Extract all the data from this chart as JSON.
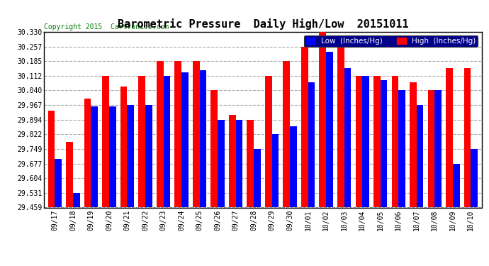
{
  "title": "Barometric Pressure  Daily High/Low  20151011",
  "copyright": "Copyright 2015  Cartronics.com",
  "legend_low": "Low  (Inches/Hg)",
  "legend_high": "High  (Inches/Hg)",
  "dates": [
    "09/17",
    "09/18",
    "09/19",
    "09/20",
    "09/21",
    "09/22",
    "09/23",
    "09/24",
    "09/25",
    "09/26",
    "09/27",
    "09/28",
    "09/29",
    "09/30",
    "10/01",
    "10/02",
    "10/03",
    "10/04",
    "10/05",
    "10/06",
    "10/07",
    "10/08",
    "10/09",
    "10/10"
  ],
  "low_values": [
    29.7,
    29.531,
    29.96,
    29.96,
    29.967,
    29.967,
    30.112,
    30.13,
    30.14,
    29.894,
    29.894,
    29.749,
    29.822,
    29.862,
    30.08,
    30.23,
    30.15,
    30.112,
    30.09,
    30.04,
    29.967,
    30.04,
    29.677,
    29.749
  ],
  "high_values": [
    29.94,
    29.785,
    30.0,
    30.112,
    30.06,
    30.112,
    30.185,
    30.185,
    30.185,
    30.04,
    29.92,
    29.894,
    30.112,
    30.185,
    30.257,
    30.33,
    30.257,
    30.112,
    30.112,
    30.112,
    30.08,
    30.04,
    30.15,
    30.15
  ],
  "ylim_min": 29.459,
  "ylim_max": 30.33,
  "yticks": [
    29.459,
    29.531,
    29.604,
    29.677,
    29.749,
    29.822,
    29.894,
    29.967,
    30.04,
    30.112,
    30.185,
    30.257,
    30.33
  ],
  "bar_width": 0.38,
  "low_color": "#0000FF",
  "high_color": "#FF0000",
  "bg_color": "#FFFFFF",
  "plot_bg_color": "#FFFFFF",
  "grid_color": "#AAAAAA",
  "title_fontsize": 11,
  "copyright_fontsize": 7,
  "tick_fontsize": 7,
  "legend_fontsize": 7.5
}
